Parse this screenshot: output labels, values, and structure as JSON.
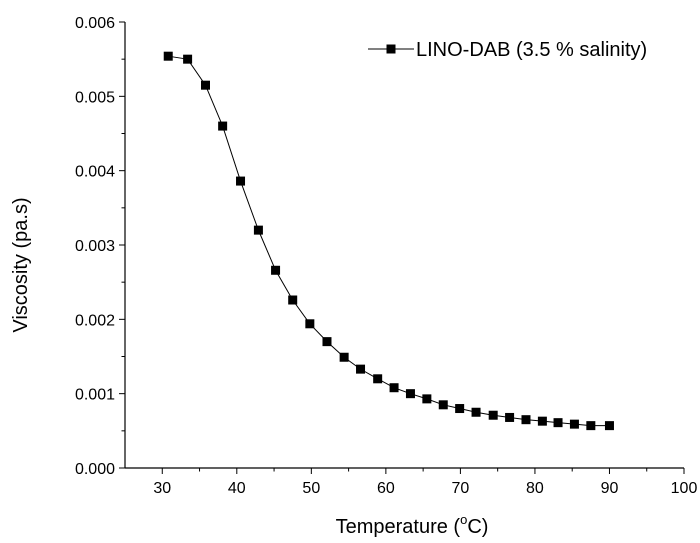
{
  "chart_data": {
    "type": "line",
    "title": "",
    "xlabel": "Temperature (",
    "xlabel_sup": "o",
    "xlabel_unit": "C)",
    "ylabel": "Viscosity (pa.s)",
    "xlim": [
      25,
      100
    ],
    "ylim": [
      0.0,
      0.006
    ],
    "xticks": [
      30,
      40,
      50,
      60,
      70,
      80,
      90,
      100
    ],
    "xtick_labels": [
      "30",
      "40",
      "50",
      "60",
      "70",
      "80",
      "90",
      "100"
    ],
    "yticks": [
      0.0,
      0.001,
      0.002,
      0.003,
      0.004,
      0.005,
      0.006
    ],
    "ytick_labels": [
      "0.000",
      "0.001",
      "0.002",
      "0.003",
      "0.004",
      "0.005",
      "0.006"
    ],
    "grid": false,
    "legend_position": "top-right",
    "series": [
      {
        "name": "LINO-DAB (3.5 % salinity)",
        "marker": "square",
        "color": "#000000",
        "x": [
          30.8,
          33.4,
          35.8,
          38.1,
          40.5,
          42.9,
          45.2,
          47.5,
          49.8,
          52.1,
          54.4,
          56.6,
          58.9,
          61.1,
          63.3,
          65.5,
          67.7,
          69.9,
          72.1,
          74.4,
          76.6,
          78.8,
          81.0,
          83.1,
          85.3,
          87.5,
          90.0
        ],
        "y": [
          0.00554,
          0.0055,
          0.00515,
          0.0046,
          0.00386,
          0.0032,
          0.00266,
          0.00226,
          0.00194,
          0.0017,
          0.00149,
          0.00133,
          0.0012,
          0.00108,
          0.001,
          0.00093,
          0.00085,
          0.0008,
          0.00075,
          0.00071,
          0.00068,
          0.00065,
          0.00063,
          0.00061,
          0.00059,
          0.00057,
          0.00057
        ]
      }
    ]
  }
}
